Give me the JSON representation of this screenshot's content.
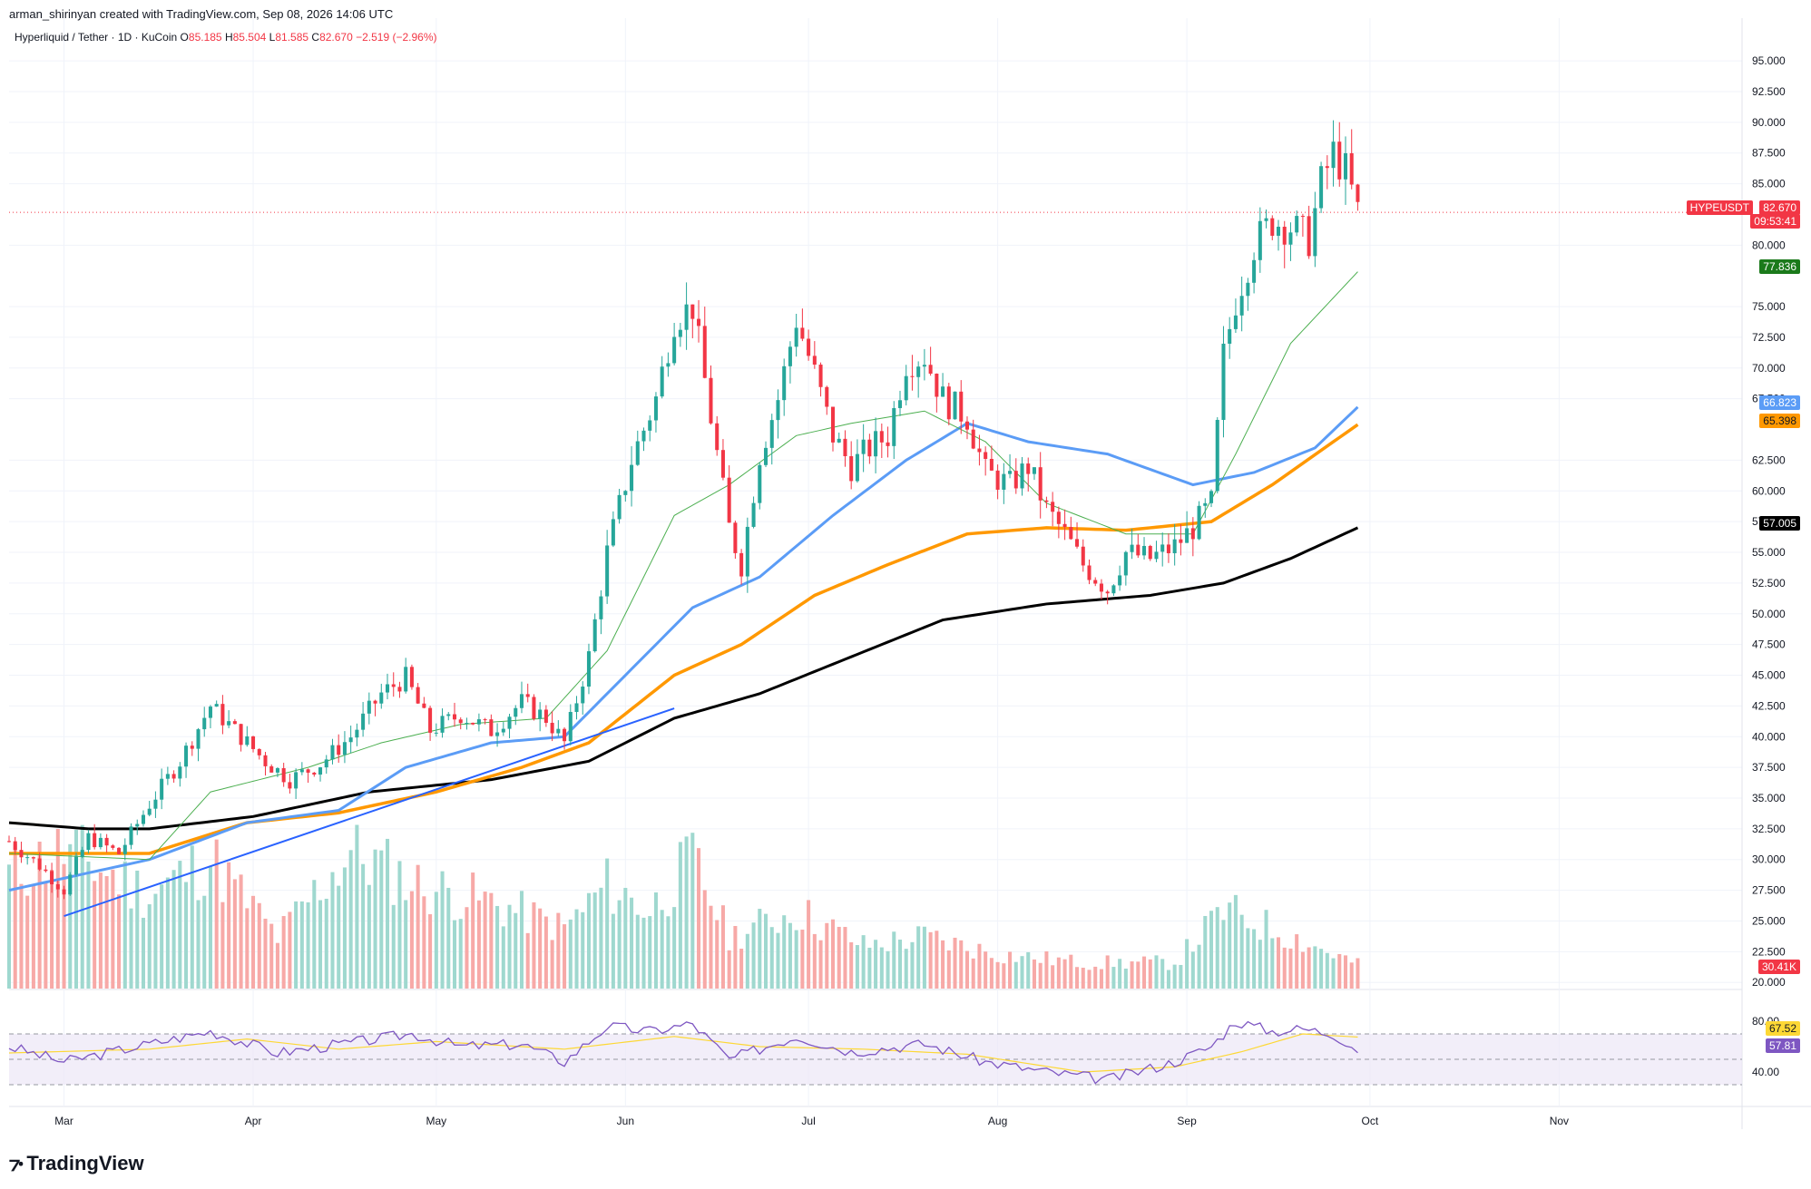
{
  "header": {
    "credit": "arman_shirinyan created with TradingView.com, Sep 08, 2026 14:06 UTC",
    "symbol_line": "Hyperliquid / Tether · 1D · KuCoin",
    "o_label": "O",
    "o_value": "85.185",
    "h_label": "H",
    "h_value": "85.504",
    "l_label": "L",
    "l_value": "81.585",
    "c_label": "C",
    "c_value": "82.670",
    "change": "−2.519 (−2.96%)"
  },
  "tags": {
    "symbol": "HYPEUSDT",
    "price": "82.670",
    "countdown": "09:53:41",
    "ma20": "77.836",
    "ma50": "66.823",
    "ema100": "65.398",
    "ma200": "57.005",
    "volume": "30.41K",
    "rsi_ma": "67.52",
    "rsi": "57.81"
  },
  "brand": {
    "name": "TradingView"
  },
  "colors": {
    "up": "#26a69a",
    "down": "#f23645",
    "vol_up": "#9fd8cf",
    "vol_down": "#f7a9a7",
    "ma20": "#4caf50",
    "ma50": "#5b9cf6",
    "ema100": "#ff9800",
    "ma200": "#000000",
    "trendline": "#2962ff",
    "rsi": "#7e57c2",
    "rsi_ma": "#fdd835"
  },
  "chart_data": {
    "type": "candlestick",
    "price_axis": [
      "95.000",
      "92.500",
      "90.000",
      "87.500",
      "85.000",
      "80.000",
      "75.000",
      "72.500",
      "70.000",
      "67.500",
      "62.500",
      "60.000",
      "57.500",
      "55.000",
      "52.500",
      "50.000",
      "47.500",
      "45.000",
      "42.500",
      "40.000",
      "37.500",
      "35.000",
      "32.500",
      "30.000",
      "27.500",
      "25.000",
      "22.500",
      "20.000"
    ],
    "ylim": [
      19.5,
      97
    ],
    "time_axis": [
      "Mar",
      "Apr",
      "May",
      "Jun",
      "Jul",
      "Aug",
      "Sep",
      "Oct",
      "Nov"
    ],
    "rsi_axis": [
      "80.00",
      "40.00"
    ],
    "rsi_levels": [
      70,
      50,
      30
    ],
    "close_anchors": [
      [
        "2026-02-20",
        31.5
      ],
      [
        "2026-02-25",
        29.5
      ],
      [
        "2026-03-01",
        27.5
      ],
      [
        "2026-03-05",
        31.8
      ],
      [
        "2026-03-10",
        30.5
      ],
      [
        "2026-03-15",
        34.5
      ],
      [
        "2026-03-20",
        38.0
      ],
      [
        "2026-03-25",
        42.5
      ],
      [
        "2026-03-29",
        40.5
      ],
      [
        "2026-04-03",
        38.0
      ],
      [
        "2026-04-07",
        36.5
      ],
      [
        "2026-04-12",
        37.8
      ],
      [
        "2026-04-17",
        40.0
      ],
      [
        "2026-04-22",
        43.5
      ],
      [
        "2026-04-26",
        44.8
      ],
      [
        "2026-04-30",
        40.5
      ],
      [
        "2026-05-05",
        41.8
      ],
      [
        "2026-05-10",
        40.5
      ],
      [
        "2026-05-15",
        42.8
      ],
      [
        "2026-05-19",
        41.5
      ],
      [
        "2026-05-22",
        39.5
      ],
      [
        "2026-05-26",
        46.5
      ],
      [
        "2026-05-29",
        55.0
      ],
      [
        "2026-06-02",
        62.5
      ],
      [
        "2026-06-06",
        67.5
      ],
      [
        "2026-06-09",
        74.0
      ],
      [
        "2026-06-12",
        75.0
      ],
      [
        "2026-06-15",
        66.0
      ],
      [
        "2026-06-18",
        57.0
      ],
      [
        "2026-06-20",
        54.0
      ],
      [
        "2026-06-23",
        63.0
      ],
      [
        "2026-06-26",
        67.5
      ],
      [
        "2026-06-29",
        74.0
      ],
      [
        "2026-07-02",
        69.5
      ],
      [
        "2026-07-05",
        64.5
      ],
      [
        "2026-07-08",
        62.0
      ],
      [
        "2026-07-11",
        63.5
      ],
      [
        "2026-07-14",
        64.5
      ],
      [
        "2026-07-17",
        70.5
      ],
      [
        "2026-07-20",
        71.0
      ],
      [
        "2026-07-23",
        67.5
      ],
      [
        "2026-07-27",
        66.0
      ],
      [
        "2026-07-30",
        61.5
      ],
      [
        "2026-08-03",
        60.5
      ],
      [
        "2026-08-06",
        62.0
      ],
      [
        "2026-08-09",
        58.5
      ],
      [
        "2026-08-12",
        56.5
      ],
      [
        "2026-08-15",
        54.0
      ],
      [
        "2026-08-19",
        52.0
      ],
      [
        "2026-08-22",
        55.0
      ],
      [
        "2026-08-26",
        54.5
      ],
      [
        "2026-08-30",
        55.5
      ],
      [
        "2026-09-02",
        57.0
      ],
      [
        "2026-09-05",
        59.0
      ],
      [
        "2026-09-07",
        71.0
      ],
      [
        "2026-09-09",
        75.5
      ],
      [
        "2026-09-12",
        80.0
      ],
      [
        "2026-09-15",
        82.0
      ],
      [
        "2026-09-18",
        81.5
      ],
      [
        "2026-09-21",
        80.5
      ],
      [
        "2026-09-23",
        85.0
      ],
      [
        "2026-09-25",
        87.5
      ],
      [
        "2026-09-27",
        86.0
      ],
      [
        "2026-09-29",
        82.67
      ]
    ],
    "ma20": [
      [
        "2026-02-20",
        30.5
      ],
      [
        "2026-03-15",
        30.0
      ],
      [
        "2026-03-25",
        35.5
      ],
      [
        "2026-04-10",
        37.5
      ],
      [
        "2026-04-22",
        39.5
      ],
      [
        "2026-05-05",
        41.0
      ],
      [
        "2026-05-19",
        41.5
      ],
      [
        "2026-05-29",
        47.0
      ],
      [
        "2026-06-09",
        58.0
      ],
      [
        "2026-06-18",
        60.5
      ],
      [
        "2026-06-29",
        64.5
      ],
      [
        "2026-07-08",
        65.5
      ],
      [
        "2026-07-20",
        66.5
      ],
      [
        "2026-07-30",
        64.0
      ],
      [
        "2026-08-09",
        59.0
      ],
      [
        "2026-08-22",
        56.5
      ],
      [
        "2026-09-02",
        56.5
      ],
      [
        "2026-09-09",
        63.0
      ],
      [
        "2026-09-18",
        72.0
      ],
      [
        "2026-09-29",
        77.836
      ]
    ],
    "ma50": [
      [
        "2026-02-20",
        27.5
      ],
      [
        "2026-03-15",
        30.0
      ],
      [
        "2026-03-31",
        33.0
      ],
      [
        "2026-04-15",
        34.0
      ],
      [
        "2026-04-26",
        37.5
      ],
      [
        "2026-05-10",
        39.5
      ],
      [
        "2026-05-22",
        40.0
      ],
      [
        "2026-06-02",
        45.5
      ],
      [
        "2026-06-12",
        50.5
      ],
      [
        "2026-06-23",
        53.0
      ],
      [
        "2026-07-05",
        58.0
      ],
      [
        "2026-07-17",
        62.5
      ],
      [
        "2026-07-27",
        65.5
      ],
      [
        "2026-08-06",
        64.0
      ],
      [
        "2026-08-19",
        63.0
      ],
      [
        "2026-09-02",
        60.5
      ],
      [
        "2026-09-12",
        61.5
      ],
      [
        "2026-09-22",
        63.5
      ],
      [
        "2026-09-29",
        66.823
      ]
    ],
    "ema100": [
      [
        "2026-02-20",
        30.5
      ],
      [
        "2026-03-15",
        30.5
      ],
      [
        "2026-03-31",
        33.0
      ],
      [
        "2026-04-15",
        33.8
      ],
      [
        "2026-05-01",
        35.5
      ],
      [
        "2026-05-15",
        37.5
      ],
      [
        "2026-05-26",
        39.5
      ],
      [
        "2026-06-09",
        45.0
      ],
      [
        "2026-06-20",
        47.5
      ],
      [
        "2026-07-02",
        51.5
      ],
      [
        "2026-07-14",
        54.0
      ],
      [
        "2026-07-27",
        56.5
      ],
      [
        "2026-08-09",
        57.0
      ],
      [
        "2026-08-22",
        56.8
      ],
      [
        "2026-09-05",
        57.5
      ],
      [
        "2026-09-15",
        60.5
      ],
      [
        "2026-09-29",
        65.398
      ]
    ],
    "ma200": [
      [
        "2026-02-20",
        33.0
      ],
      [
        "2026-03-05",
        32.5
      ],
      [
        "2026-03-15",
        32.5
      ],
      [
        "2026-04-01",
        33.5
      ],
      [
        "2026-04-20",
        35.5
      ],
      [
        "2026-05-10",
        36.5
      ],
      [
        "2026-05-26",
        38.0
      ],
      [
        "2026-06-09",
        41.5
      ],
      [
        "2026-06-23",
        43.5
      ],
      [
        "2026-07-08",
        46.5
      ],
      [
        "2026-07-23",
        49.5
      ],
      [
        "2026-08-09",
        50.8
      ],
      [
        "2026-08-26",
        51.5
      ],
      [
        "2026-09-07",
        52.5
      ],
      [
        "2026-09-18",
        54.5
      ],
      [
        "2026-09-29",
        57.005
      ]
    ],
    "trendline": [
      [
        "2026-03-01",
        25.4
      ],
      [
        "2026-06-09",
        42.3
      ]
    ],
    "volume_anchors": [
      [
        "2026-02-20",
        0.66
      ],
      [
        "2026-03-01",
        0.8
      ],
      [
        "2026-03-15",
        0.55
      ],
      [
        "2026-03-25",
        0.75
      ],
      [
        "2026-04-05",
        0.3
      ],
      [
        "2026-04-17",
        0.8
      ],
      [
        "2026-04-28",
        0.6
      ],
      [
        "2026-05-10",
        0.5
      ],
      [
        "2026-05-22",
        0.35
      ],
      [
        "2026-05-29",
        0.6
      ],
      [
        "2026-06-05",
        0.45
      ],
      [
        "2026-06-12",
        0.75
      ],
      [
        "2026-06-18",
        0.3
      ],
      [
        "2026-06-29",
        0.45
      ],
      [
        "2026-07-10",
        0.25
      ],
      [
        "2026-07-20",
        0.3
      ],
      [
        "2026-08-01",
        0.2
      ],
      [
        "2026-08-15",
        0.15
      ],
      [
        "2026-08-30",
        0.15
      ],
      [
        "2026-09-07",
        0.45
      ],
      [
        "2026-09-15",
        0.35
      ],
      [
        "2026-09-29",
        0.14
      ]
    ],
    "rsi_anchors": [
      [
        "2026-02-20",
        60
      ],
      [
        "2026-03-01",
        48
      ],
      [
        "2026-03-15",
        62
      ],
      [
        "2026-03-25",
        72
      ],
      [
        "2026-04-05",
        55
      ],
      [
        "2026-04-20",
        65
      ],
      [
        "2026-04-27",
        70
      ],
      [
        "2026-05-05",
        60
      ],
      [
        "2026-05-15",
        62
      ],
      [
        "2026-05-22",
        48
      ],
      [
        "2026-05-29",
        76
      ],
      [
        "2026-06-05",
        72
      ],
      [
        "2026-06-12",
        78
      ],
      [
        "2026-06-18",
        50
      ],
      [
        "2026-06-29",
        68
      ],
      [
        "2026-07-08",
        56
      ],
      [
        "2026-07-20",
        62
      ],
      [
        "2026-07-30",
        48
      ],
      [
        "2026-08-09",
        40
      ],
      [
        "2026-08-19",
        34
      ],
      [
        "2026-08-30",
        48
      ],
      [
        "2026-09-05",
        60
      ],
      [
        "2026-09-09",
        80
      ],
      [
        "2026-09-15",
        72
      ],
      [
        "2026-09-20",
        74
      ],
      [
        "2026-09-25",
        70
      ],
      [
        "2026-09-29",
        57.81
      ]
    ],
    "rsi_ma_anchors": [
      [
        "2026-02-20",
        55
      ],
      [
        "2026-03-15",
        58
      ],
      [
        "2026-03-31",
        66
      ],
      [
        "2026-04-15",
        58
      ],
      [
        "2026-05-01",
        64
      ],
      [
        "2026-05-22",
        58
      ],
      [
        "2026-06-09",
        68
      ],
      [
        "2026-06-23",
        60
      ],
      [
        "2026-07-10",
        58
      ],
      [
        "2026-07-27",
        54
      ],
      [
        "2026-08-15",
        40
      ],
      [
        "2026-08-30",
        44
      ],
      [
        "2026-09-10",
        56
      ],
      [
        "2026-09-20",
        70
      ],
      [
        "2026-09-29",
        67.52
      ]
    ]
  }
}
